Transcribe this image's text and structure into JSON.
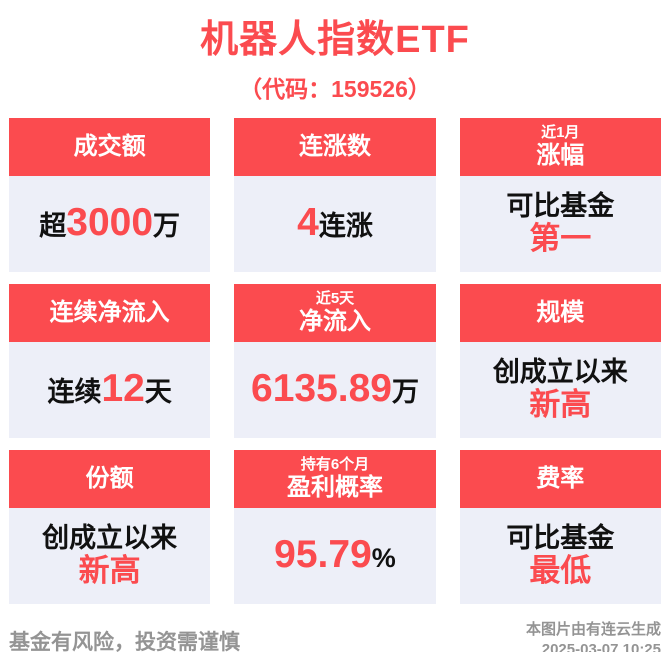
{
  "header": {
    "title": "机器人指数ETF",
    "subtitle": "（代码：159526）"
  },
  "colors": {
    "accent": "#fb4b4f",
    "card_body_bg": "#edeff8",
    "dark_text": "#111111",
    "footer_gray": "#949494"
  },
  "cards": [
    {
      "name": "turnover",
      "header_lines": [
        "成交额"
      ],
      "body_lines": [
        [
          {
            "text": "超",
            "style": "dark"
          },
          {
            "text": "3000",
            "style": "num"
          },
          {
            "text": "万",
            "style": "dark"
          }
        ]
      ]
    },
    {
      "name": "consecutive-gain-count",
      "header_lines": [
        "连涨数"
      ],
      "body_lines": [
        [
          {
            "text": "4",
            "style": "num"
          },
          {
            "text": "连涨",
            "style": "dark"
          }
        ]
      ]
    },
    {
      "name": "one-month-gain-rank",
      "header_lines": [
        "近1月",
        "涨幅"
      ],
      "body_lines": [
        [
          {
            "text": "可比基金",
            "style": "dark"
          }
        ],
        [
          {
            "text": "第一",
            "style": "red"
          }
        ]
      ]
    },
    {
      "name": "consecutive-net-inflow",
      "header_lines": [
        "连续净流入"
      ],
      "body_lines": [
        [
          {
            "text": "连续",
            "style": "dark"
          },
          {
            "text": "12",
            "style": "num"
          },
          {
            "text": "天",
            "style": "dark"
          }
        ]
      ]
    },
    {
      "name": "five-day-net-inflow",
      "header_lines": [
        "近5天",
        "净流入"
      ],
      "body_lines": [
        [
          {
            "text": "6135.89",
            "style": "num"
          },
          {
            "text": "万",
            "style": "dark"
          }
        ]
      ]
    },
    {
      "name": "scale",
      "header_lines": [
        "规模"
      ],
      "body_lines": [
        [
          {
            "text": "创成立以来",
            "style": "dark"
          }
        ],
        [
          {
            "text": "新高",
            "style": "red"
          }
        ]
      ]
    },
    {
      "name": "shares",
      "header_lines": [
        "份额"
      ],
      "body_lines": [
        [
          {
            "text": "创成立以来",
            "style": "dark"
          }
        ],
        [
          {
            "text": "新高",
            "style": "red"
          }
        ]
      ]
    },
    {
      "name": "six-month-profit-probability",
      "header_lines": [
        "持有6个月",
        "盈利概率"
      ],
      "body_lines": [
        [
          {
            "text": "95.79",
            "style": "num"
          },
          {
            "text": "%",
            "style": "dark"
          }
        ]
      ]
    },
    {
      "name": "fee-rate",
      "header_lines": [
        "费率"
      ],
      "body_lines": [
        [
          {
            "text": "可比基金",
            "style": "dark"
          }
        ],
        [
          {
            "text": "最低",
            "style": "red"
          }
        ]
      ]
    }
  ],
  "footer": {
    "disclaimer": "基金有风险，投资需谨慎",
    "credit_source": "本图片由有连云生成",
    "credit_timestamp": "2025-03-07 10:25"
  }
}
